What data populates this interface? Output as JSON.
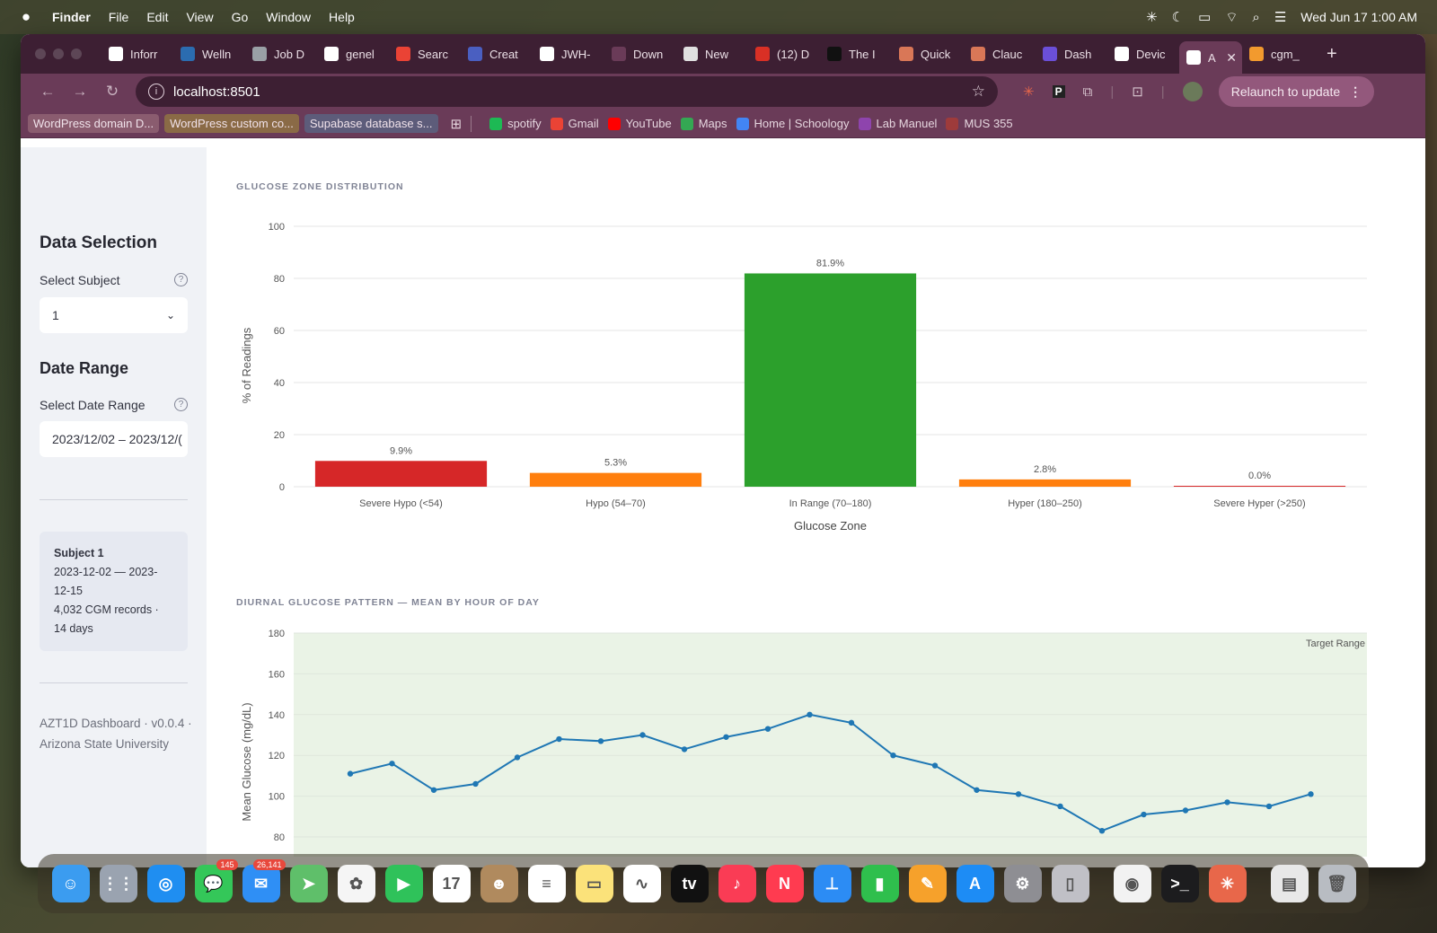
{
  "menubar": {
    "app": "Finder",
    "items": [
      "File",
      "Edit",
      "View",
      "Go",
      "Window",
      "Help"
    ],
    "datetime": "Wed Jun 17  1:00 AM"
  },
  "tabs": [
    {
      "label": "Inforr",
      "color": "#ffffff",
      "fg": "#333"
    },
    {
      "label": "Welln",
      "color": "#2b6cb0",
      "fg": "#fff"
    },
    {
      "label": "Job D",
      "color": "#9aa0a6",
      "fg": "#fff"
    },
    {
      "label": "genel",
      "color": "#ffffff",
      "fg": "#000"
    },
    {
      "label": "Searc",
      "color": "#ea4335",
      "fg": "#fff"
    },
    {
      "label": "Creat",
      "color": "#4a5fc1",
      "fg": "#fff"
    },
    {
      "label": "JWH-",
      "color": "#ffffff",
      "fg": "#000"
    },
    {
      "label": "Down",
      "color": "#6a3b58",
      "fg": "#fff"
    },
    {
      "label": "New",
      "color": "#e0e0e0",
      "fg": "#333"
    },
    {
      "label": "(12) D",
      "color": "#d93025",
      "fg": "#fff"
    },
    {
      "label": "The I",
      "color": "#111111",
      "fg": "#fff"
    },
    {
      "label": "Quick",
      "color": "#d97757",
      "fg": "#fff"
    },
    {
      "label": "Clauc",
      "color": "#d97757",
      "fg": "#fff"
    },
    {
      "label": "Dash",
      "color": "#6b4fd8",
      "fg": "#fff"
    },
    {
      "label": "Devic",
      "color": "#ffffff",
      "fg": "#000"
    },
    {
      "label": "A",
      "color": "#ffffff",
      "fg": "#6a3b58"
    },
    {
      "label": "cgm_",
      "color": "#f29a2e",
      "fg": "#fff"
    }
  ],
  "address": {
    "url": "localhost:8501",
    "relaunch": "Relaunch to update"
  },
  "bookmarks": {
    "chips": [
      "WordPress domain D...",
      "WordPress custom co...",
      "Supabase database s..."
    ],
    "links": [
      {
        "label": "spotify",
        "color": "#1db954"
      },
      {
        "label": "Gmail",
        "color": "#ea4335"
      },
      {
        "label": "YouTube",
        "color": "#ff0000"
      },
      {
        "label": "Maps",
        "color": "#34a853"
      },
      {
        "label": "Home | Schoology",
        "color": "#4285f4"
      },
      {
        "label": "Lab Manuel",
        "color": "#8e44ad"
      },
      {
        "label": "MUS 355",
        "color": "#9e3b3b"
      }
    ]
  },
  "sidebar": {
    "data_selection": "Data Selection",
    "select_subject_label": "Select Subject",
    "subject_value": "1",
    "date_range_heading": "Date Range",
    "date_range_label": "Select Date Range",
    "date_range_value": "2023/12/02 – 2023/12/(",
    "card_title": "Subject 1",
    "card_dates": "2023-12-02 — 2023-12-15",
    "card_records": "4,032 CGM records · 14 days",
    "footer": "AZT1D Dashboard · v0.0.4 · Arizona State University"
  },
  "section_titles": {
    "zones": "GLUCOSE ZONE DISTRIBUTION",
    "diurnal": "DIURNAL GLUCOSE PATTERN — MEAN BY HOUR OF DAY"
  },
  "chart_data": [
    {
      "type": "bar",
      "title": "Glucose Zone Distribution",
      "xlabel": "Glucose Zone",
      "ylabel": "% of Readings",
      "ylim": [
        0,
        100
      ],
      "yticks": [
        0,
        20,
        40,
        60,
        80,
        100
      ],
      "categories": [
        "Severe Hypo (<54)",
        "Hypo (54–70)",
        "In Range (70–180)",
        "Hyper (180–250)",
        "Severe Hyper (>250)"
      ],
      "values": [
        9.9,
        5.3,
        81.9,
        2.8,
        0.0
      ],
      "labels": [
        "9.9%",
        "5.3%",
        "81.9%",
        "2.8%",
        "0.0%"
      ],
      "colors": [
        "#d62728",
        "#ff7f0e",
        "#2ca02c",
        "#ff7f0e",
        "#d62728"
      ],
      "grid": true
    },
    {
      "type": "line",
      "title": "Diurnal Glucose Pattern — Mean by Hour of Day",
      "ylabel": "Mean Glucose (mg/dL)",
      "ylim": [
        80,
        180
      ],
      "yticks": [
        80,
        100,
        120,
        140,
        160,
        180
      ],
      "x": [
        0,
        1,
        2,
        3,
        4,
        5,
        6,
        7,
        8,
        9,
        10,
        11,
        12,
        13,
        14,
        15,
        16,
        17,
        18,
        19,
        20,
        21,
        22,
        23
      ],
      "values": [
        111,
        116,
        103,
        106,
        119,
        128,
        127,
        130,
        123,
        129,
        133,
        140,
        136,
        120,
        115,
        103,
        101,
        95,
        83,
        91,
        93,
        97,
        95,
        101
      ],
      "color": "#1f77b4",
      "band": {
        "from": 70,
        "to": 180,
        "label": "Target Range",
        "color": "#eaf3e6"
      },
      "grid": true
    }
  ],
  "dock": [
    {
      "name": "finder",
      "color": "#3b9cf0",
      "glyph": "☺"
    },
    {
      "name": "launchpad",
      "color": "#9aa3b0",
      "glyph": "⋮⋮"
    },
    {
      "name": "safari",
      "color": "#1f8ef1",
      "glyph": "◎"
    },
    {
      "name": "messages",
      "color": "#34c759",
      "glyph": "💬",
      "badge": "145"
    },
    {
      "name": "mail",
      "color": "#2f8ff5",
      "glyph": "✉",
      "badge": "26,141"
    },
    {
      "name": "maps",
      "color": "#5fbf6a",
      "glyph": "➤"
    },
    {
      "name": "photos",
      "color": "#f5f5f5",
      "glyph": "✿"
    },
    {
      "name": "facetime",
      "color": "#2fc25a",
      "glyph": "▶"
    },
    {
      "name": "calendar",
      "color": "#ffffff",
      "glyph": "17"
    },
    {
      "name": "contacts",
      "color": "#b08a5e",
      "glyph": "☻"
    },
    {
      "name": "reminders",
      "color": "#ffffff",
      "glyph": "≡"
    },
    {
      "name": "notes",
      "color": "#fbe27a",
      "glyph": "▭"
    },
    {
      "name": "freeform",
      "color": "#ffffff",
      "glyph": "∿"
    },
    {
      "name": "tv",
      "color": "#111111",
      "glyph": "tv"
    },
    {
      "name": "music",
      "color": "#fa3c55",
      "glyph": "♪"
    },
    {
      "name": "news",
      "color": "#ff3b50",
      "glyph": "N"
    },
    {
      "name": "keynote",
      "color": "#2c8cf4",
      "glyph": "⊥"
    },
    {
      "name": "numbers",
      "color": "#2fbf4d",
      "glyph": "▮"
    },
    {
      "name": "pages",
      "color": "#f6a12b",
      "glyph": "✎"
    },
    {
      "name": "app-store",
      "color": "#1d8cf5",
      "glyph": "A"
    },
    {
      "name": "system-settings",
      "color": "#8e8e93",
      "glyph": "⚙"
    },
    {
      "name": "iphone-mirroring",
      "color": "#c0c0c6",
      "glyph": "▯"
    },
    {
      "name": "chrome",
      "color": "#f2f2f2",
      "glyph": "◉"
    },
    {
      "name": "terminal",
      "color": "#1c1c1e",
      "glyph": ">_"
    },
    {
      "name": "claude",
      "color": "#e8674a",
      "glyph": "✳"
    },
    {
      "name": "archive",
      "color": "#e8e8e8",
      "glyph": "▤"
    },
    {
      "name": "trash",
      "color": "#b8bcc2",
      "glyph": "🗑"
    }
  ]
}
